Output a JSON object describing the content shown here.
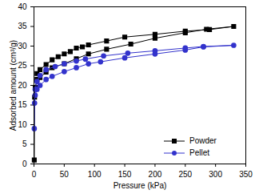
{
  "chart_data": {
    "type": "line",
    "x_label": "Pressure (kPa)",
    "y_label": "Adsorbed amount (cm³/g)",
    "xlim": [
      0,
      350
    ],
    "xticks": [
      0,
      50,
      100,
      150,
      200,
      250,
      300,
      350
    ],
    "ylim": [
      0,
      40
    ],
    "yticks": [
      0,
      5,
      10,
      15,
      20,
      25,
      30,
      35,
      40
    ],
    "legend": "right",
    "series": [
      {
        "name": "Powder",
        "color": "#000000",
        "marker": "square",
        "x": [
          0.5,
          1,
          2,
          5,
          10,
          20,
          30,
          50,
          70,
          90,
          120,
          160,
          200,
          250,
          285,
          330,
          290,
          250,
          200,
          150,
          120,
          90,
          80,
          70,
          60,
          50,
          40,
          30,
          20,
          10,
          5
        ],
        "values": [
          1,
          17,
          19.5,
          21.5,
          22,
          23.4,
          24.5,
          25.5,
          26.8,
          28,
          29.2,
          30.5,
          32,
          33.4,
          34.3,
          35,
          34.2,
          33.8,
          33,
          32.3,
          31.3,
          30.3,
          29.8,
          29.5,
          28.6,
          28,
          27.3,
          26.5,
          25.3,
          24,
          23
        ]
      },
      {
        "name": "Pellet",
        "color": "#3333cc",
        "marker": "circle",
        "x": [
          0.5,
          1,
          2,
          5,
          10,
          20,
          30,
          50,
          70,
          90,
          110,
          150,
          200,
          250,
          280,
          330,
          280,
          250,
          200,
          155,
          115,
          85,
          70,
          50,
          35,
          20,
          10,
          5,
          2
        ],
        "values": [
          9,
          15.5,
          17.5,
          19,
          20,
          21.5,
          22.3,
          23.5,
          24.5,
          25.5,
          26,
          27,
          28,
          29,
          29.8,
          30.2,
          29.9,
          29.5,
          28.8,
          28.2,
          27.5,
          26.7,
          26.2,
          25.5,
          24.8,
          24,
          22.5,
          21,
          19
        ]
      }
    ]
  }
}
